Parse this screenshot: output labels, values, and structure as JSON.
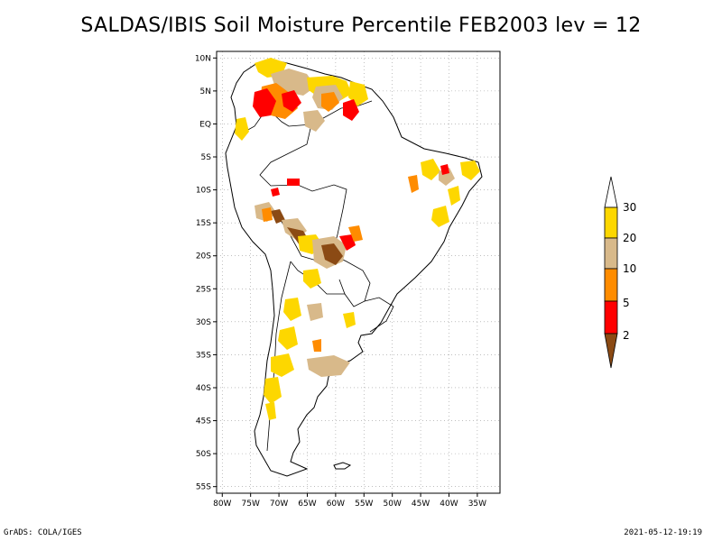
{
  "title": "SALDAS/IBIS Soil Moisture Percentile FEB2003 lev = 12",
  "footer": {
    "left": "GrADS: COLA/IGES",
    "right": "2021-05-12-19:19"
  },
  "map": {
    "region": "South America",
    "lon_range": [
      -81,
      -31
    ],
    "lat_range": [
      -56,
      11
    ],
    "lat_ticks": [
      {
        "value": 10,
        "label": "10N"
      },
      {
        "value": 5,
        "label": "5N"
      },
      {
        "value": 0,
        "label": "EQ"
      },
      {
        "value": -5,
        "label": "5S"
      },
      {
        "value": -10,
        "label": "10S"
      },
      {
        "value": -15,
        "label": "15S"
      },
      {
        "value": -20,
        "label": "20S"
      },
      {
        "value": -25,
        "label": "25S"
      },
      {
        "value": -30,
        "label": "30S"
      },
      {
        "value": -35,
        "label": "35S"
      },
      {
        "value": -40,
        "label": "40S"
      },
      {
        "value": -45,
        "label": "45S"
      },
      {
        "value": -50,
        "label": "50S"
      },
      {
        "value": -55,
        "label": "55S"
      }
    ],
    "lon_ticks": [
      {
        "value": -80,
        "label": "80W"
      },
      {
        "value": -75,
        "label": "75W"
      },
      {
        "value": -70,
        "label": "70W"
      },
      {
        "value": -65,
        "label": "65W"
      },
      {
        "value": -60,
        "label": "60W"
      },
      {
        "value": -55,
        "label": "55W"
      },
      {
        "value": -50,
        "label": "50W"
      },
      {
        "value": -45,
        "label": "45W"
      },
      {
        "value": -40,
        "label": "40W"
      },
      {
        "value": -35,
        "label": "35W"
      }
    ],
    "grid": "dotted"
  },
  "legend": {
    "labels": [
      "30",
      "20",
      "10",
      "5",
      "2"
    ],
    "colors": [
      "#ffffff",
      "#fdd700",
      "#d8b98a",
      "#ff8c00",
      "#ff0000",
      "#8b4a14"
    ]
  }
}
